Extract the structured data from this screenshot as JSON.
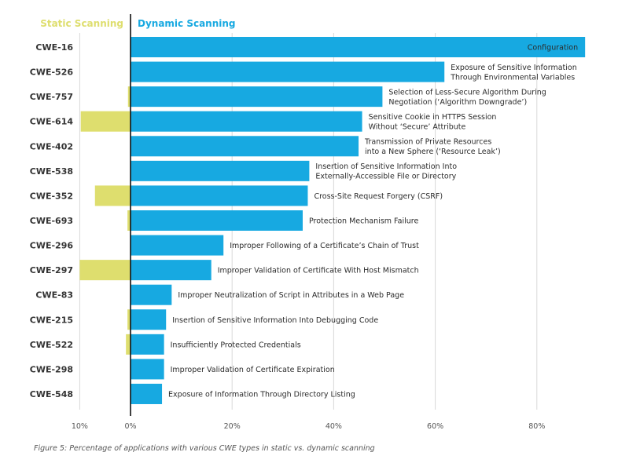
{
  "legend": {
    "static_label": "Static Scanning",
    "dynamic_label": "Dynamic Scanning"
  },
  "colors": {
    "static": "#dede6e",
    "dynamic": "#17a9e1",
    "axis": "#111111",
    "grid": "#d8d8d8"
  },
  "caption": "Figure 5: Percentage of applications with various CWE types in static vs. dynamic scanning",
  "chart_data": {
    "type": "bar",
    "orientation": "horizontal-diverging",
    "xlim": [
      -10,
      90
    ],
    "x_ticks": [
      {
        "value": -10,
        "label": "10%"
      },
      {
        "value": 0,
        "label": "0%"
      },
      {
        "value": 20,
        "label": "20%"
      },
      {
        "value": 40,
        "label": "40%"
      },
      {
        "value": 60,
        "label": "60%"
      },
      {
        "value": 80,
        "label": "80%"
      }
    ],
    "grid": true,
    "legend_position": "top",
    "categories": [
      "CWE-16",
      "CWE-526",
      "CWE-757",
      "CWE-614",
      "CWE-402",
      "CWE-538",
      "CWE-352",
      "CWE-693",
      "CWE-296",
      "CWE-297",
      "CWE-83",
      "CWE-215",
      "CWE-522",
      "CWE-298",
      "CWE-548"
    ],
    "descriptions": [
      [
        "Configuration"
      ],
      [
        "Exposure of Sensitive Information",
        "Through Environmental Variables"
      ],
      [
        "Selection of Less-Secure Algorithm During",
        "Negotiation (‘Algorithm Downgrade’)"
      ],
      [
        "Sensitive Cookie in HTTPS Session",
        "Without ‘Secure’ Attribute"
      ],
      [
        "Transmission of Private Resources",
        "into a New Sphere (‘Resource Leak’)"
      ],
      [
        "Insertion of Sensitive Information Into",
        "Externally-Accessible File or Directory"
      ],
      [
        "Cross-Site Request Forgery (CSRF)"
      ],
      [
        "Protection Mechanism Failure"
      ],
      [
        "Improper Following of a Certificate’s Chain of Trust"
      ],
      [
        "Improper Validation of Certificate With Host Mismatch"
      ],
      [
        "Improper Neutralization of Script in Attributes in a Web Page"
      ],
      [
        "Insertion of Sensitive Information Into Debugging Code"
      ],
      [
        "Insufficiently Protected Credentials"
      ],
      [
        "Improper Validation of Certificate Expiration"
      ],
      [
        "Exposure of Information Through Directory Listing"
      ]
    ],
    "series": [
      {
        "name": "Static Scanning",
        "values": [
          0,
          0,
          0.5,
          9.8,
          0,
          0,
          7,
          0.6,
          0,
          10,
          0,
          0.6,
          0.9,
          0,
          0
        ]
      },
      {
        "name": "Dynamic Scanning",
        "values": [
          89.5,
          61.8,
          49.6,
          45.6,
          44.9,
          35.2,
          34.9,
          33.9,
          18.3,
          15.9,
          8.1,
          7.0,
          6.6,
          6.6,
          6.2
        ]
      }
    ]
  }
}
